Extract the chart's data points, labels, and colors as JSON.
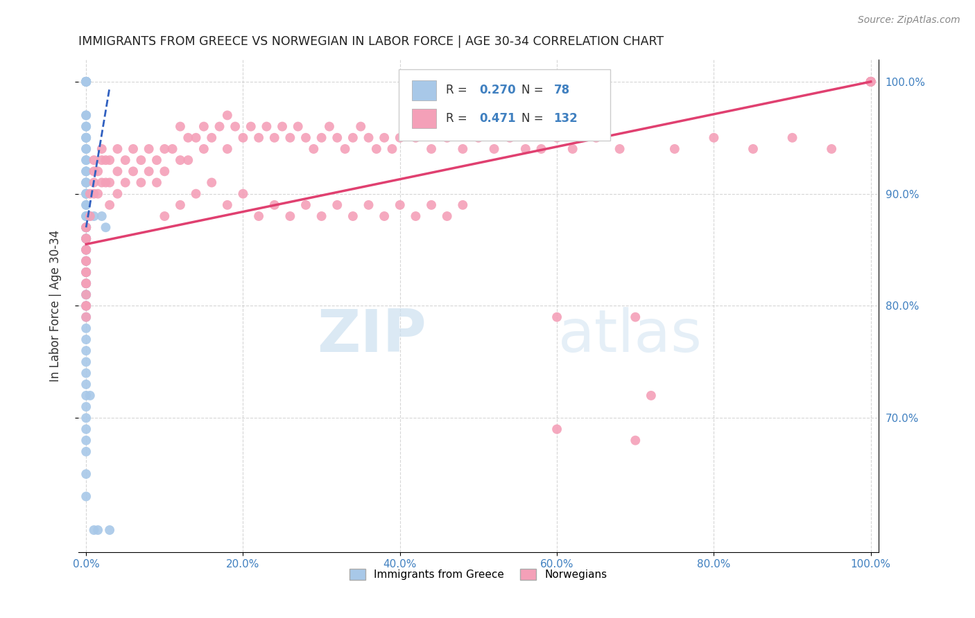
{
  "title": "IMMIGRANTS FROM GREECE VS NORWEGIAN IN LABOR FORCE | AGE 30-34 CORRELATION CHART",
  "source": "Source: ZipAtlas.com",
  "ylabel": "In Labor Force | Age 30-34",
  "legend_labels": [
    "Immigrants from Greece",
    "Norwegians"
  ],
  "legend_R": [
    "0.270",
    "0.471"
  ],
  "legend_N": [
    "78",
    "132"
  ],
  "blue_color": "#a8c8e8",
  "pink_color": "#f4a0b8",
  "blue_line_color": "#3060c0",
  "pink_line_color": "#e04070",
  "background_color": "#ffffff",
  "grid_color": "#cccccc",
  "title_color": "#222222",
  "axis_label_color": "#4080c0",
  "xlim": [
    0.0,
    1.0
  ],
  "ylim": [
    0.58,
    1.02
  ],
  "x_ticks": [
    0.0,
    0.2,
    0.4,
    0.6,
    0.8,
    1.0
  ],
  "y_ticks": [
    0.7,
    0.8,
    0.9,
    1.0
  ],
  "blue_x": [
    0.0,
    0.0,
    0.0,
    0.0,
    0.0,
    0.0,
    0.0,
    0.0,
    0.0,
    0.0,
    0.0,
    0.0,
    0.0,
    0.0,
    0.0,
    0.0,
    0.0,
    0.0,
    0.0,
    0.0,
    0.0,
    0.0,
    0.0,
    0.0,
    0.0,
    0.0,
    0.0,
    0.0,
    0.0,
    0.0,
    0.0,
    0.0,
    0.0,
    0.0,
    0.0,
    0.0,
    0.0,
    0.0,
    0.0,
    0.0,
    0.0,
    0.0,
    0.0,
    0.0,
    0.0,
    0.0,
    0.0,
    0.0,
    0.0,
    0.0,
    0.0,
    0.0,
    0.0,
    0.0,
    0.0,
    0.0,
    0.0,
    0.0,
    0.0,
    0.0,
    0.0,
    0.0,
    0.0,
    0.0,
    0.0,
    0.0,
    0.0,
    0.0,
    0.0,
    0.0,
    0.005,
    0.005,
    0.01,
    0.01,
    0.015,
    0.02,
    0.025,
    0.03
  ],
  "blue_y": [
    1.0,
    1.0,
    1.0,
    1.0,
    1.0,
    1.0,
    1.0,
    1.0,
    1.0,
    1.0,
    0.97,
    0.97,
    0.96,
    0.96,
    0.95,
    0.95,
    0.95,
    0.94,
    0.94,
    0.93,
    0.93,
    0.92,
    0.92,
    0.91,
    0.91,
    0.91,
    0.9,
    0.9,
    0.9,
    0.89,
    0.89,
    0.88,
    0.88,
    0.88,
    0.87,
    0.87,
    0.87,
    0.87,
    0.86,
    0.86,
    0.86,
    0.86,
    0.85,
    0.85,
    0.85,
    0.84,
    0.84,
    0.83,
    0.83,
    0.82,
    0.82,
    0.81,
    0.81,
    0.8,
    0.8,
    0.79,
    0.78,
    0.77,
    0.76,
    0.75,
    0.74,
    0.73,
    0.72,
    0.71,
    0.7,
    0.69,
    0.68,
    0.67,
    0.65,
    0.63,
    0.88,
    0.72,
    0.88,
    0.6,
    0.6,
    0.88,
    0.87,
    0.6
  ],
  "pink_x": [
    0.0,
    0.0,
    0.0,
    0.0,
    0.0,
    0.0,
    0.0,
    0.0,
    0.0,
    0.0,
    0.0,
    0.0,
    0.0,
    0.0,
    0.0,
    0.0,
    0.005,
    0.005,
    0.01,
    0.01,
    0.01,
    0.01,
    0.015,
    0.015,
    0.02,
    0.02,
    0.02,
    0.025,
    0.025,
    0.03,
    0.03,
    0.03,
    0.04,
    0.04,
    0.04,
    0.05,
    0.05,
    0.06,
    0.06,
    0.07,
    0.07,
    0.08,
    0.08,
    0.09,
    0.09,
    0.1,
    0.1,
    0.11,
    0.12,
    0.12,
    0.13,
    0.13,
    0.14,
    0.15,
    0.15,
    0.16,
    0.17,
    0.18,
    0.18,
    0.19,
    0.2,
    0.21,
    0.22,
    0.23,
    0.24,
    0.25,
    0.26,
    0.27,
    0.28,
    0.29,
    0.3,
    0.31,
    0.32,
    0.33,
    0.34,
    0.35,
    0.36,
    0.37,
    0.38,
    0.39,
    0.4,
    0.42,
    0.44,
    0.46,
    0.48,
    0.5,
    0.52,
    0.54,
    0.56,
    0.58,
    0.6,
    0.6,
    0.62,
    0.65,
    0.68,
    0.7,
    0.72,
    0.75,
    0.8,
    0.85,
    0.9,
    0.95,
    1.0,
    1.0,
    1.0,
    1.0,
    1.0,
    1.0,
    1.0,
    1.0,
    0.1,
    0.12,
    0.14,
    0.16,
    0.18,
    0.2,
    0.22,
    0.24,
    0.26,
    0.28,
    0.3,
    0.32,
    0.34,
    0.36,
    0.38,
    0.4,
    0.42,
    0.44,
    0.46,
    0.48,
    0.6,
    0.7
  ],
  "pink_y": [
    0.87,
    0.87,
    0.86,
    0.86,
    0.85,
    0.85,
    0.84,
    0.84,
    0.83,
    0.83,
    0.82,
    0.82,
    0.81,
    0.8,
    0.8,
    0.79,
    0.9,
    0.88,
    0.93,
    0.92,
    0.91,
    0.9,
    0.92,
    0.9,
    0.94,
    0.93,
    0.91,
    0.93,
    0.91,
    0.93,
    0.91,
    0.89,
    0.94,
    0.92,
    0.9,
    0.93,
    0.91,
    0.94,
    0.92,
    0.93,
    0.91,
    0.94,
    0.92,
    0.93,
    0.91,
    0.94,
    0.92,
    0.94,
    0.96,
    0.93,
    0.95,
    0.93,
    0.95,
    0.96,
    0.94,
    0.95,
    0.96,
    0.97,
    0.94,
    0.96,
    0.95,
    0.96,
    0.95,
    0.96,
    0.95,
    0.96,
    0.95,
    0.96,
    0.95,
    0.94,
    0.95,
    0.96,
    0.95,
    0.94,
    0.95,
    0.96,
    0.95,
    0.94,
    0.95,
    0.94,
    0.95,
    0.95,
    0.94,
    0.95,
    0.94,
    0.95,
    0.94,
    0.95,
    0.94,
    0.94,
    0.95,
    0.79,
    0.94,
    0.95,
    0.94,
    0.79,
    0.72,
    0.94,
    0.95,
    0.94,
    0.95,
    0.94,
    1.0,
    1.0,
    1.0,
    1.0,
    1.0,
    1.0,
    1.0,
    1.0,
    0.88,
    0.89,
    0.9,
    0.91,
    0.89,
    0.9,
    0.88,
    0.89,
    0.88,
    0.89,
    0.88,
    0.89,
    0.88,
    0.89,
    0.88,
    0.89,
    0.88,
    0.89,
    0.88,
    0.89,
    0.69,
    0.68
  ],
  "blue_trend_x": [
    0.0,
    0.03
  ],
  "blue_trend_y": [
    0.87,
    0.995
  ],
  "pink_trend_x": [
    0.0,
    1.0
  ],
  "pink_trend_y": [
    0.855,
    1.0
  ]
}
